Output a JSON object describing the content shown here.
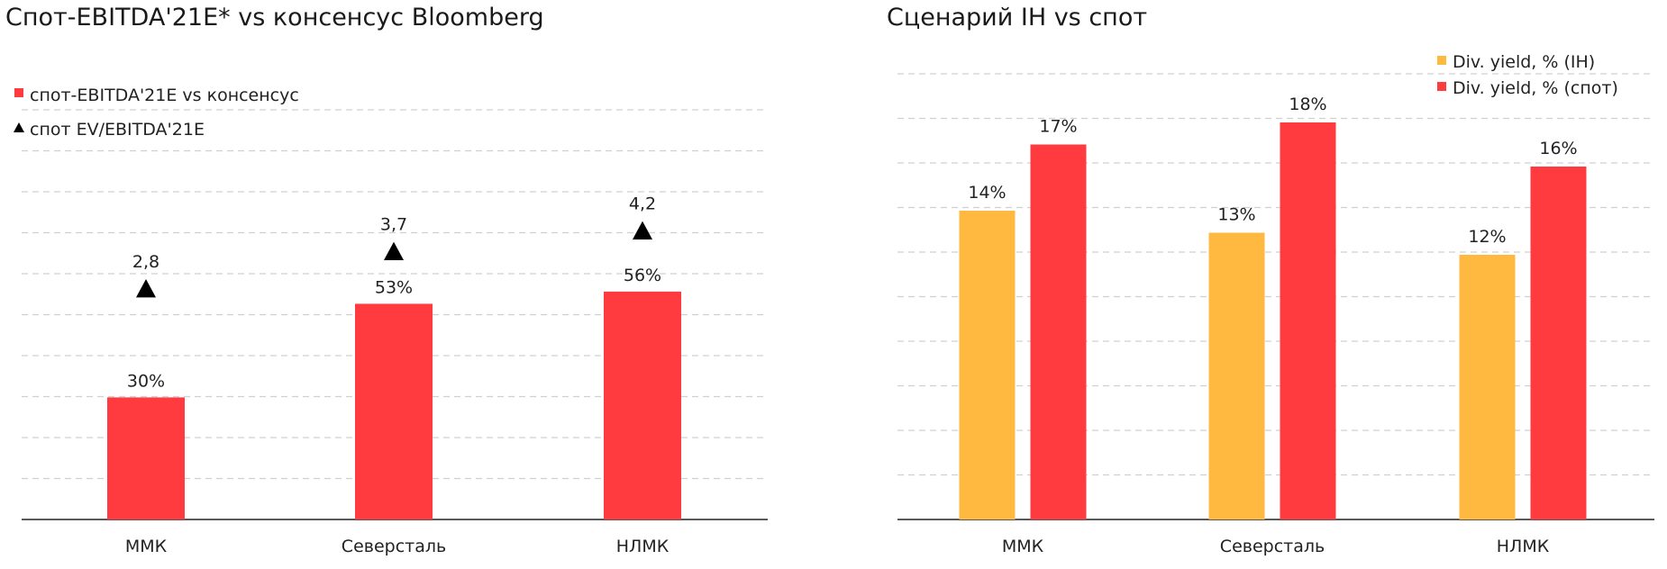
{
  "chart_data": [
    {
      "type": "bar",
      "title": "Спот-EBITDA'21E* vs консенсус Bloomberg",
      "categories": [
        "ММК",
        "Северсталь",
        "НЛМК"
      ],
      "series": [
        {
          "name": "спот-EBITDA'21E vs консенсус",
          "values": [
            30,
            53,
            56
          ],
          "labels": [
            "30%",
            "53%",
            "56%"
          ],
          "color": "#ff3b3f",
          "marker": "square"
        },
        {
          "name": "спот EV/EBITDA'21E",
          "values": [
            2.8,
            3.7,
            4.2
          ],
          "labels": [
            "2,8",
            "3,7",
            "4,2"
          ],
          "color": "#000000",
          "marker": "triangle"
        }
      ],
      "ylim": [
        0,
        100
      ],
      "grid": true,
      "legend": "top-left"
    },
    {
      "type": "bar",
      "title": "Сценарий IH vs спот",
      "categories": [
        "ММК",
        "Северсталь",
        "НЛМК"
      ],
      "series": [
        {
          "name": "Div. yield, % (IH)",
          "values": [
            14,
            13,
            12
          ],
          "labels": [
            "14%",
            "13%",
            "12%"
          ],
          "color": "#ffb840"
        },
        {
          "name": "Div. yield, % (спот)",
          "values": [
            17,
            18,
            16
          ],
          "labels": [
            "17%",
            "18%",
            "16%"
          ],
          "color": "#ff3b3f"
        }
      ],
      "ylim": [
        0,
        20
      ],
      "grid": true,
      "legend": "top-right"
    }
  ]
}
